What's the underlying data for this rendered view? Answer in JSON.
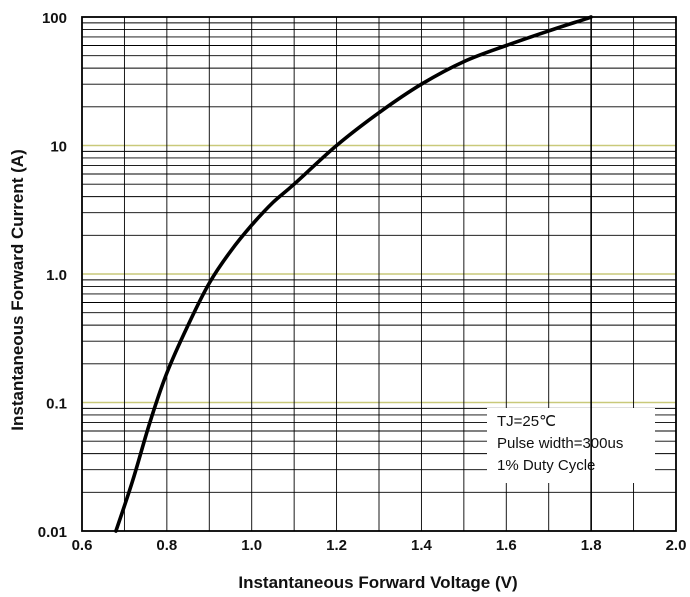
{
  "chart_data": {
    "type": "line",
    "xlabel": "Instantaneous Forward Voltage (V)",
    "ylabel": "Instantaneous Forward Current (A)",
    "xlim": [
      0.6,
      2.0
    ],
    "ylim": [
      0.01,
      100
    ],
    "y_scale": "log",
    "grid": true,
    "x_ticks": [
      "0.6",
      "0.8",
      "1.0",
      "1.2",
      "1.4",
      "1.6",
      "1.8",
      "2.0"
    ],
    "y_ticks": [
      "0.01",
      "0.1",
      "1.0",
      "10",
      "100"
    ],
    "series": [
      {
        "x": [
          0.68,
          0.72,
          0.76,
          0.8,
          0.85,
          0.9,
          0.95,
          1.0,
          1.05,
          1.1,
          1.2,
          1.3,
          1.4,
          1.5,
          1.6,
          1.7,
          1.78,
          1.8
        ],
        "y": [
          0.01,
          0.025,
          0.07,
          0.17,
          0.4,
          0.85,
          1.5,
          2.4,
          3.6,
          5.0,
          10,
          18,
          30,
          45,
          60,
          78,
          95,
          100
        ],
        "color": "#000000"
      }
    ],
    "annotations": [
      "TJ=25℃",
      "Pulse width=300us",
      "1% Duty Cycle"
    ],
    "colors": {
      "decade_lines": "#c9c97a",
      "grid": "#000000",
      "curve": "#000000"
    }
  }
}
